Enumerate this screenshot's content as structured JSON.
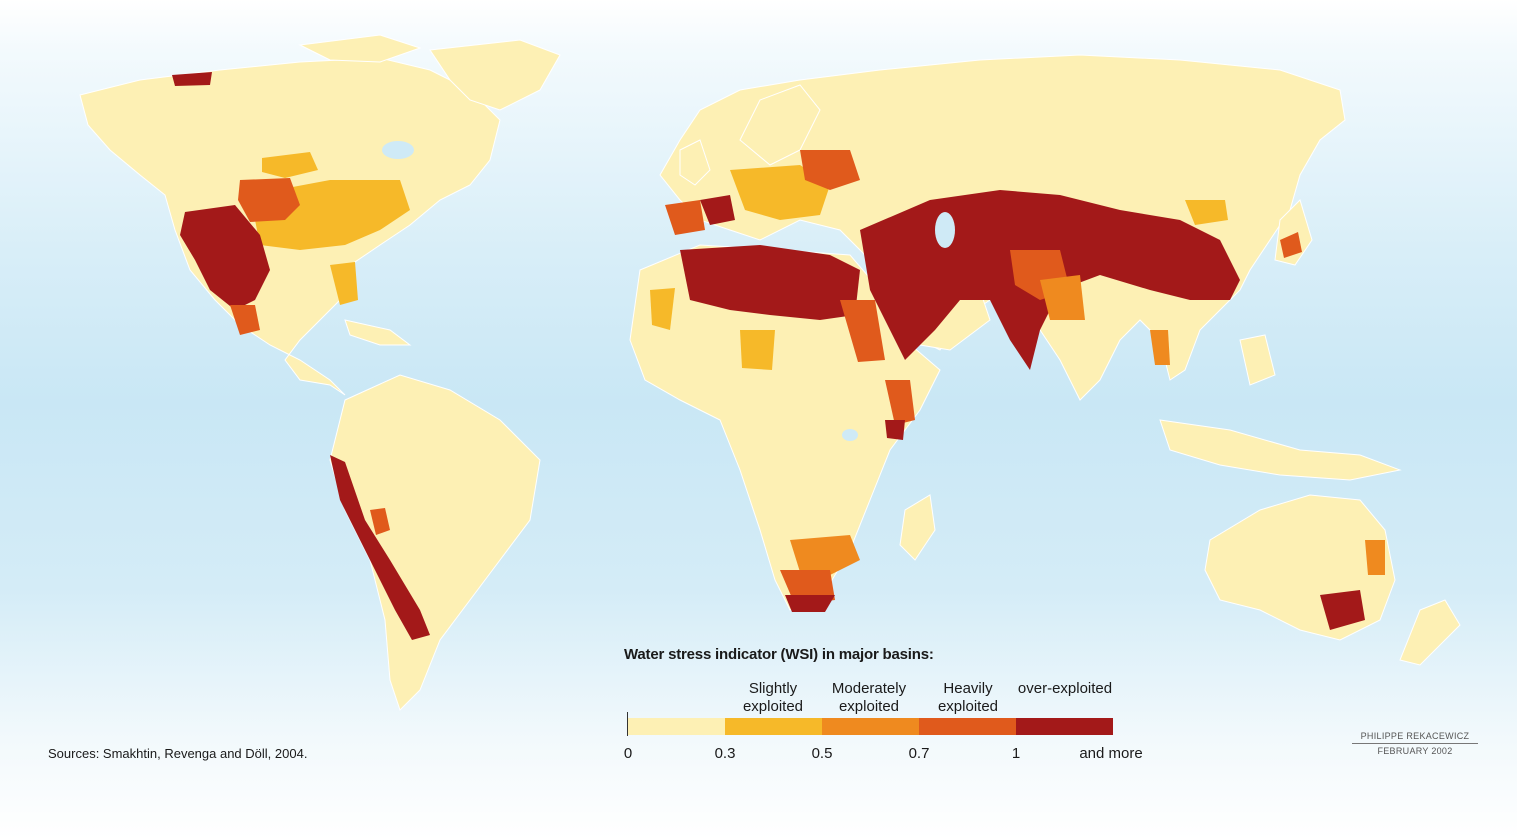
{
  "map": {
    "colors": {
      "ocean": "#cfeaf6",
      "land": "#fdf0b4",
      "slight": "#f6b929",
      "moderate": "#ef8a1f",
      "heavy": "#e05a1c",
      "over": "#a31919"
    }
  },
  "legend": {
    "title": "Water stress indicator (WSI) in major basins:",
    "categories": [
      {
        "label": "Slightly exploited",
        "color": "#f6b929"
      },
      {
        "label": "Moderately exploited",
        "color": "#ef8a1f"
      },
      {
        "label": "Heavily exploited",
        "color": "#e05a1c"
      },
      {
        "label": "over-exploited",
        "color": "#a31919"
      }
    ],
    "base_color": "#fdf0b4",
    "ticks": [
      "0",
      "0.3",
      "0.5",
      "0.7",
      "1",
      "and more"
    ]
  },
  "source": "Sources:  Smakhtin, Revenga and Döll, 2004.",
  "credit": {
    "author": "PHILIPPE REKACEWICZ",
    "date": "FEBRUARY 2002"
  }
}
